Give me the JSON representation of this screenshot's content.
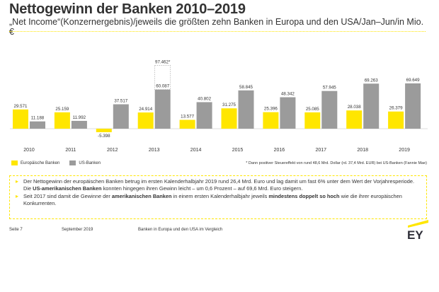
{
  "header": {
    "title": "Nettogewinn der Banken 2010–2019",
    "subtitle": "„Net Income“(Konzernergebnis)/jeweils die größten zehn Banken in Europa und den USA/Jan–Jun/in Mio. €"
  },
  "colors": {
    "europe": "#ffe600",
    "usa": "#9b9b9b",
    "accent": "#ffe600",
    "text": "#333333"
  },
  "chart_data": {
    "type": "bar",
    "categories": [
      "2010",
      "2011",
      "2012",
      "2013",
      "2014",
      "2015",
      "2016",
      "2017",
      "2018",
      "2019"
    ],
    "series": [
      {
        "name": "Europäische Banken",
        "values": [
          29571,
          25159,
          -5398,
          24914,
          13577,
          31275,
          25396,
          25085,
          28038,
          26379
        ],
        "labels": [
          "29.571",
          "25.159",
          "-5.398",
          "24.914",
          "13.577",
          "31.275",
          "25.396",
          "25.085",
          "28.038",
          "26.379"
        ]
      },
      {
        "name": "US-Banken",
        "values": [
          11188,
          11992,
          37517,
          60087,
          40802,
          58845,
          48342,
          57945,
          69263,
          69649
        ],
        "labels": [
          "11.188",
          "11.992",
          "37.517",
          "60.087",
          "40.802",
          "58.845",
          "48.342",
          "57.945",
          "69.263",
          "69.649"
        ]
      }
    ],
    "annotation": {
      "category": "2013",
      "value": 97462,
      "label": "97.462*"
    },
    "ylim": [
      -6000,
      98000
    ],
    "grid": false,
    "legend_position": "bottom-left"
  },
  "legend": {
    "europe_label": "Europäische Banken",
    "usa_label": "US-Banken"
  },
  "footnote": "* Dann positiver Steuereffekt von rund 48,6 Mrd. Dollar (rd. 37,4 Mrd. EUR) bei US-Banken (Fannie Mae)",
  "info": {
    "b1_p1": "Der Nettogewinn der europäischen Banken betrug im ersten Kalenderhalbjahr 2019 rund 26,4 Mrd. Euro und lag damit um fast 6% unter dem Wert der Vorjahresperiode. Die ",
    "b1_strong": "US-amerikanischen Banken",
    "b1_p2": " konnten hingegen ihren Gewinn leicht – um 0,6 Prozent – auf 69,6 Mrd. Euro steigern.",
    "b2_p1": "Seit 2017 sind damit die Gewinne der ",
    "b2_strong1": "amerikanischen Banken",
    "b2_p2": " in einem ersten Kalenderhalbjahr jeweils ",
    "b2_strong2": "mindestens doppelt so hoch",
    "b2_p3": " wie die ihrer europäischen Konkurrenten."
  },
  "footer": {
    "page": "Seite 7",
    "date": "September 2019",
    "topic": "Banken in Europa und den USA im Vergleich"
  },
  "logo": {
    "text": "EY"
  }
}
